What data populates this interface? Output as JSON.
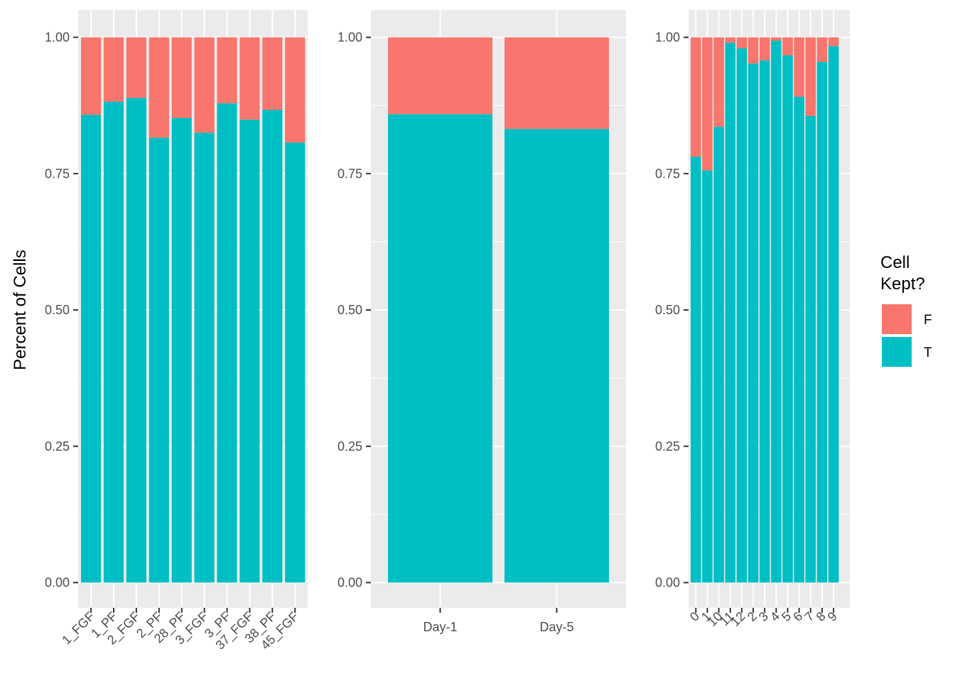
{
  "chart_data": {
    "type": "bar",
    "stacked": true,
    "ylabel": "Percent of Cells",
    "yticks": [
      "0.00",
      "0.25",
      "0.50",
      "0.75",
      "1.00"
    ],
    "ylim": [
      0,
      1
    ],
    "legend": {
      "title_lines": [
        "Cell",
        "Kept?"
      ],
      "placement": "right",
      "entries": [
        {
          "key": "F",
          "label": "F",
          "color": "#F8766D"
        },
        {
          "key": "T",
          "label": "T",
          "color": "#00BFC4"
        }
      ]
    },
    "panels": [
      {
        "categories": [
          "1_FGF",
          "1_PF",
          "2_FGF",
          "2_PF",
          "28_PF",
          "3_FGF",
          "3_PF",
          "37_FGF",
          "38_PF",
          "45_FGF"
        ],
        "x_label_rotation": "45-degree",
        "series": [
          {
            "name": "T",
            "values": [
              0.858,
              0.882,
              0.889,
              0.816,
              0.852,
              0.825,
              0.879,
              0.849,
              0.867,
              0.807
            ]
          },
          {
            "name": "F",
            "values": [
              0.142,
              0.118,
              0.111,
              0.184,
              0.148,
              0.175,
              0.121,
              0.151,
              0.133,
              0.193
            ]
          }
        ]
      },
      {
        "categories": [
          "Day-1",
          "Day-5"
        ],
        "x_label_rotation": "none",
        "series": [
          {
            "name": "T",
            "values": [
              0.859,
              0.832
            ]
          },
          {
            "name": "F",
            "values": [
              0.141,
              0.168
            ]
          }
        ]
      },
      {
        "categories": [
          "0",
          "1",
          "10",
          "11",
          "12",
          "2",
          "3",
          "4",
          "5",
          "6",
          "7",
          "8",
          "9"
        ],
        "x_label_rotation": "45-degree",
        "series": [
          {
            "name": "T",
            "values": [
              0.781,
              0.756,
              0.836,
              0.99,
              0.98,
              0.952,
              0.958,
              0.994,
              0.967,
              0.891,
              0.856,
              0.955,
              0.984
            ]
          },
          {
            "name": "F",
            "values": [
              0.219,
              0.244,
              0.164,
              0.01,
              0.02,
              0.048,
              0.042,
              0.006,
              0.033,
              0.109,
              0.144,
              0.045,
              0.016
            ]
          }
        ]
      }
    ]
  }
}
